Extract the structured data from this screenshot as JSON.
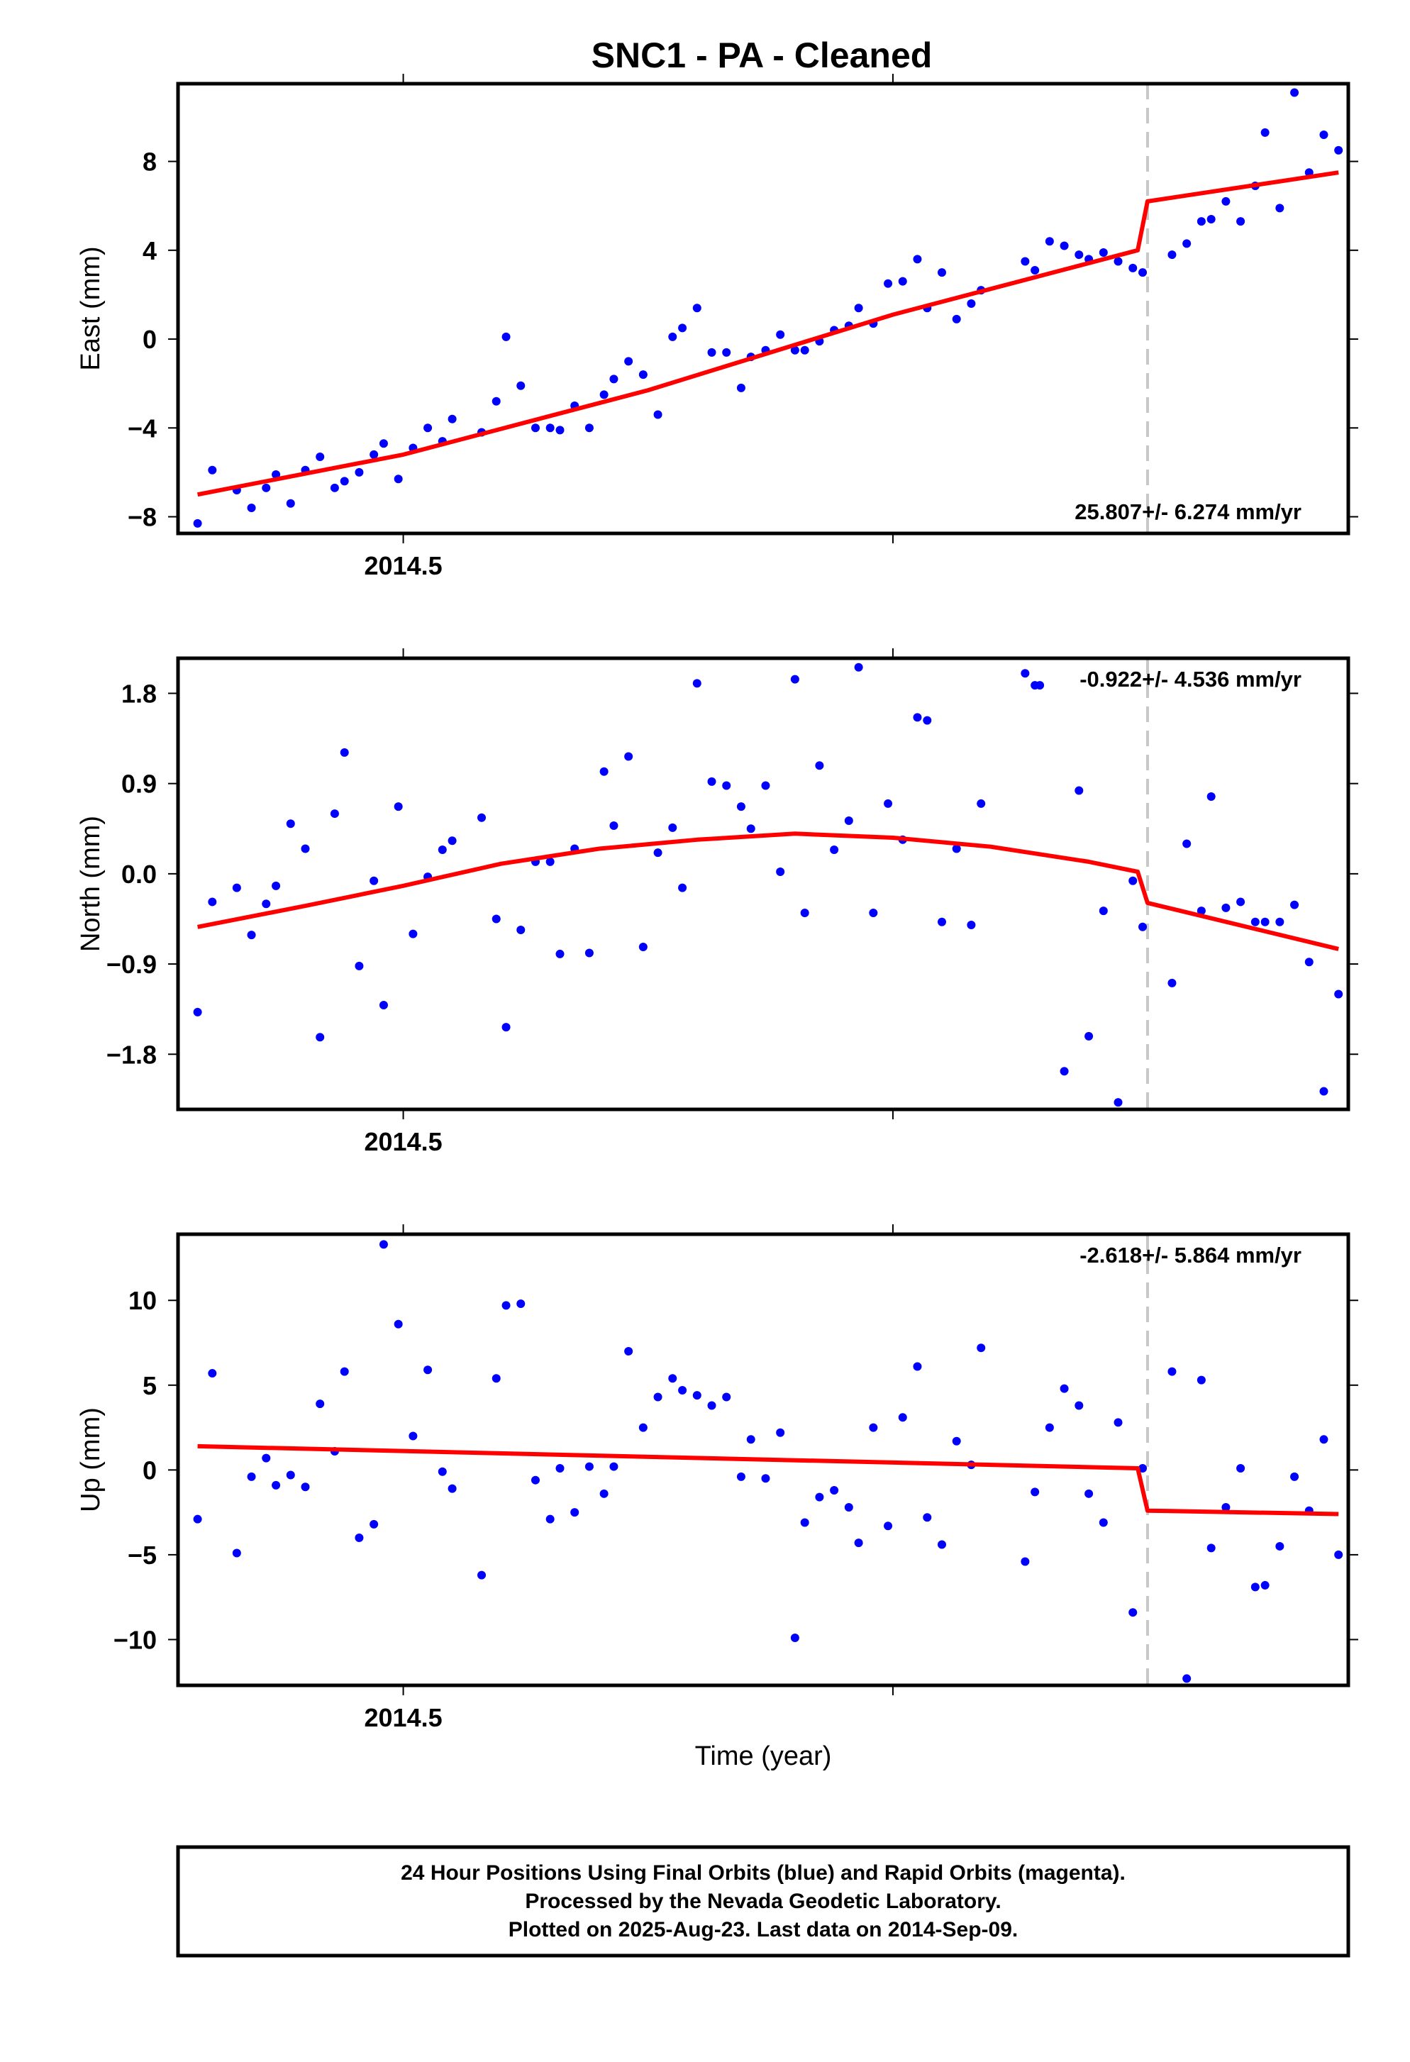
{
  "title": "SNC1  - PA - Cleaned",
  "footer": {
    "line1": "24 Hour Positions Using Final Orbits (blue) and Rapid Orbits (magenta).",
    "line2": "Processed by the Nevada Geodetic Laboratory.",
    "line3": "Plotted on 2025-Aug-23. Last data on 2014-Sep-09."
  },
  "colors": {
    "points": "#0000ff",
    "fit": "#ff0000",
    "break": "#c8c8c8",
    "frame": "#000000"
  },
  "chart_data": [
    {
      "type": "scatter",
      "panel": "east",
      "ylabel": "East (mm)",
      "xlabel": "",
      "rate_label": "25.807+/- 6.274 mm/yr",
      "rate_position": "bottom-right",
      "xlim": [
        2014.454,
        2014.693
      ],
      "ylim": [
        -8.75,
        11.5
      ],
      "yticks": [
        -8,
        -4,
        0,
        4,
        8
      ],
      "ytick_labels": [
        "−8",
        "−4",
        "0",
        "4",
        "8"
      ],
      "xticks": [
        2014.5,
        2014.6
      ],
      "xtick_labels": [
        "2014.5",
        ""
      ],
      "break_x": 2014.652,
      "points": [
        [
          2014.458,
          -8.3
        ],
        [
          2014.461,
          -5.9
        ],
        [
          2014.466,
          -6.8
        ],
        [
          2014.469,
          -7.6
        ],
        [
          2014.472,
          -6.7
        ],
        [
          2014.474,
          -6.1
        ],
        [
          2014.477,
          -7.4
        ],
        [
          2014.48,
          -5.9
        ],
        [
          2014.483,
          -5.3
        ],
        [
          2014.486,
          -6.7
        ],
        [
          2014.488,
          -6.4
        ],
        [
          2014.491,
          -6.0
        ],
        [
          2014.494,
          -5.2
        ],
        [
          2014.496,
          -4.7
        ],
        [
          2014.499,
          -6.3
        ],
        [
          2014.502,
          -4.9
        ],
        [
          2014.505,
          -4.0
        ],
        [
          2014.508,
          -4.6
        ],
        [
          2014.51,
          -3.6
        ],
        [
          2014.516,
          -4.2
        ],
        [
          2014.519,
          -2.8
        ],
        [
          2014.521,
          0.1
        ],
        [
          2014.524,
          -2.1
        ],
        [
          2014.527,
          -4.0
        ],
        [
          2014.53,
          -4.0
        ],
        [
          2014.532,
          -4.1
        ],
        [
          2014.535,
          -3.0
        ],
        [
          2014.538,
          -4.0
        ],
        [
          2014.541,
          -2.5
        ],
        [
          2014.543,
          -1.8
        ],
        [
          2014.546,
          -1.0
        ],
        [
          2014.549,
          -1.6
        ],
        [
          2014.552,
          -3.4
        ],
        [
          2014.555,
          0.1
        ],
        [
          2014.557,
          0.5
        ],
        [
          2014.56,
          1.4
        ],
        [
          2014.563,
          -0.6
        ],
        [
          2014.566,
          -0.6
        ],
        [
          2014.569,
          -2.2
        ],
        [
          2014.571,
          -0.8
        ],
        [
          2014.574,
          -0.5
        ],
        [
          2014.577,
          0.2
        ],
        [
          2014.58,
          -0.5
        ],
        [
          2014.582,
          -0.5
        ],
        [
          2014.585,
          -0.1
        ],
        [
          2014.588,
          0.4
        ],
        [
          2014.591,
          0.6
        ],
        [
          2014.593,
          1.4
        ],
        [
          2014.596,
          0.7
        ],
        [
          2014.599,
          2.5
        ],
        [
          2014.602,
          2.6
        ],
        [
          2014.605,
          3.6
        ],
        [
          2014.607,
          1.4
        ],
        [
          2014.61,
          3.0
        ],
        [
          2014.613,
          0.9
        ],
        [
          2014.616,
          1.6
        ],
        [
          2014.618,
          2.2
        ],
        [
          2014.627,
          3.5
        ],
        [
          2014.629,
          3.1
        ],
        [
          2014.632,
          4.4
        ],
        [
          2014.635,
          4.2
        ],
        [
          2014.638,
          3.8
        ],
        [
          2014.64,
          3.6
        ],
        [
          2014.643,
          3.9
        ],
        [
          2014.646,
          3.5
        ],
        [
          2014.649,
          3.2
        ],
        [
          2014.651,
          3.0
        ],
        [
          2014.657,
          3.8
        ],
        [
          2014.66,
          4.3
        ],
        [
          2014.663,
          5.3
        ],
        [
          2014.665,
          5.4
        ],
        [
          2014.668,
          6.2
        ],
        [
          2014.671,
          5.3
        ],
        [
          2014.674,
          6.9
        ],
        [
          2014.676,
          9.3
        ],
        [
          2014.679,
          5.9
        ],
        [
          2014.682,
          11.1
        ],
        [
          2014.685,
          7.5
        ],
        [
          2014.688,
          9.2
        ],
        [
          2014.691,
          8.5
        ]
      ],
      "fit": [
        [
          2014.458,
          -7.0
        ],
        [
          2014.5,
          -5.2
        ],
        [
          2014.55,
          -2.3
        ],
        [
          2014.6,
          1.1
        ],
        [
          2014.65,
          4.0
        ],
        [
          2014.652,
          6.2
        ],
        [
          2014.691,
          7.5
        ]
      ]
    },
    {
      "type": "scatter",
      "panel": "north",
      "ylabel": "North (mm)",
      "xlabel": "",
      "rate_label": "-0.922+/- 4.536 mm/yr",
      "rate_position": "top-right",
      "xlim": [
        2014.454,
        2014.693
      ],
      "ylim": [
        -2.35,
        2.15
      ],
      "yticks": [
        -1.8,
        -0.9,
        0.0,
        0.9,
        1.8
      ],
      "ytick_labels": [
        "−1.8",
        "−0.9",
        "0.0",
        "0.9",
        "1.8"
      ],
      "xticks": [
        2014.5,
        2014.6
      ],
      "xtick_labels": [
        "2014.5",
        ""
      ],
      "break_x": 2014.652,
      "points": [
        [
          2014.458,
          -1.38
        ],
        [
          2014.461,
          -0.28
        ],
        [
          2014.466,
          -0.14
        ],
        [
          2014.469,
          -0.61
        ],
        [
          2014.472,
          -0.3
        ],
        [
          2014.474,
          -0.12
        ],
        [
          2014.477,
          0.5
        ],
        [
          2014.48,
          0.25
        ],
        [
          2014.483,
          -1.63
        ],
        [
          2014.486,
          0.6
        ],
        [
          2014.488,
          1.21
        ],
        [
          2014.491,
          -0.92
        ],
        [
          2014.494,
          -0.07
        ],
        [
          2014.496,
          -1.31
        ],
        [
          2014.499,
          0.67
        ],
        [
          2014.502,
          -0.6
        ],
        [
          2014.505,
          -0.03
        ],
        [
          2014.508,
          0.24
        ],
        [
          2014.51,
          0.33
        ],
        [
          2014.516,
          0.56
        ],
        [
          2014.519,
          -0.45
        ],
        [
          2014.521,
          -1.53
        ],
        [
          2014.524,
          -0.56
        ],
        [
          2014.527,
          0.12
        ],
        [
          2014.53,
          0.12
        ],
        [
          2014.532,
          -0.8
        ],
        [
          2014.535,
          0.25
        ],
        [
          2014.538,
          -0.79
        ],
        [
          2014.541,
          1.02
        ],
        [
          2014.543,
          0.48
        ],
        [
          2014.546,
          1.17
        ],
        [
          2014.549,
          -0.73
        ],
        [
          2014.552,
          0.21
        ],
        [
          2014.555,
          0.46
        ],
        [
          2014.557,
          -0.14
        ],
        [
          2014.56,
          1.9
        ],
        [
          2014.563,
          0.92
        ],
        [
          2014.566,
          0.88
        ],
        [
          2014.569,
          0.67
        ],
        [
          2014.571,
          0.45
        ],
        [
          2014.574,
          0.88
        ],
        [
          2014.577,
          0.02
        ],
        [
          2014.58,
          1.94
        ],
        [
          2014.582,
          -0.39
        ],
        [
          2014.585,
          1.08
        ],
        [
          2014.588,
          0.24
        ],
        [
          2014.591,
          0.53
        ],
        [
          2014.593,
          2.06
        ],
        [
          2014.596,
          -0.39
        ],
        [
          2014.599,
          0.7
        ],
        [
          2014.602,
          0.34
        ],
        [
          2014.605,
          1.56
        ],
        [
          2014.607,
          1.53
        ],
        [
          2014.61,
          -0.48
        ],
        [
          2014.613,
          0.25
        ],
        [
          2014.616,
          -0.51
        ],
        [
          2014.618,
          0.7
        ],
        [
          2014.627,
          2.0
        ],
        [
          2014.629,
          1.88
        ],
        [
          2014.63,
          1.88
        ],
        [
          2014.635,
          -1.97
        ],
        [
          2014.638,
          0.83
        ],
        [
          2014.64,
          -1.62
        ],
        [
          2014.643,
          -0.37
        ],
        [
          2014.646,
          -2.28
        ],
        [
          2014.649,
          -0.07
        ],
        [
          2014.651,
          -0.53
        ],
        [
          2014.657,
          -1.09
        ],
        [
          2014.66,
          0.3
        ],
        [
          2014.663,
          -0.37
        ],
        [
          2014.665,
          0.77
        ],
        [
          2014.668,
          -0.34
        ],
        [
          2014.671,
          -0.28
        ],
        [
          2014.674,
          -0.48
        ],
        [
          2014.676,
          -0.48
        ],
        [
          2014.679,
          -0.48
        ],
        [
          2014.682,
          -0.31
        ],
        [
          2014.685,
          -0.88
        ],
        [
          2014.688,
          -2.17
        ],
        [
          2014.691,
          -1.2
        ]
      ],
      "fit": [
        [
          2014.458,
          -0.53
        ],
        [
          2014.48,
          -0.32
        ],
        [
          2014.5,
          -0.12
        ],
        [
          2014.52,
          0.1
        ],
        [
          2014.54,
          0.25
        ],
        [
          2014.56,
          0.34
        ],
        [
          2014.58,
          0.4
        ],
        [
          2014.6,
          0.36
        ],
        [
          2014.62,
          0.27
        ],
        [
          2014.64,
          0.12
        ],
        [
          2014.65,
          0.02
        ],
        [
          2014.652,
          -0.29
        ],
        [
          2014.691,
          -0.75
        ]
      ]
    },
    {
      "type": "scatter",
      "panel": "up",
      "ylabel": "Up (mm)",
      "xlabel": "Time (year)",
      "rate_label": "-2.618+/- 5.864 mm/yr",
      "rate_position": "top-right",
      "xlim": [
        2014.454,
        2014.693
      ],
      "ylim": [
        -12.7,
        13.9
      ],
      "yticks": [
        -10,
        -5,
        0,
        5,
        10
      ],
      "ytick_labels": [
        "−10",
        "−5",
        "0",
        "5",
        "10"
      ],
      "xticks": [
        2014.5,
        2014.6
      ],
      "xtick_labels": [
        "2014.5",
        ""
      ],
      "break_x": 2014.652,
      "points": [
        [
          2014.458,
          -2.9
        ],
        [
          2014.461,
          5.7
        ],
        [
          2014.466,
          -4.9
        ],
        [
          2014.469,
          -0.4
        ],
        [
          2014.472,
          0.7
        ],
        [
          2014.474,
          -0.9
        ],
        [
          2014.477,
          -0.3
        ],
        [
          2014.48,
          -1.0
        ],
        [
          2014.483,
          3.9
        ],
        [
          2014.486,
          1.1
        ],
        [
          2014.488,
          5.8
        ],
        [
          2014.491,
          -4.0
        ],
        [
          2014.494,
          -3.2
        ],
        [
          2014.496,
          13.3
        ],
        [
          2014.499,
          8.6
        ],
        [
          2014.502,
          2.0
        ],
        [
          2014.505,
          5.9
        ],
        [
          2014.508,
          -0.1
        ],
        [
          2014.51,
          -1.1
        ],
        [
          2014.516,
          -6.2
        ],
        [
          2014.519,
          5.4
        ],
        [
          2014.521,
          9.7
        ],
        [
          2014.524,
          9.8
        ],
        [
          2014.527,
          -0.6
        ],
        [
          2014.53,
          -2.9
        ],
        [
          2014.532,
          0.1
        ],
        [
          2014.535,
          -2.5
        ],
        [
          2014.538,
          0.2
        ],
        [
          2014.541,
          -1.4
        ],
        [
          2014.543,
          0.2
        ],
        [
          2014.546,
          7.0
        ],
        [
          2014.549,
          2.5
        ],
        [
          2014.552,
          4.3
        ],
        [
          2014.555,
          5.4
        ],
        [
          2014.557,
          4.7
        ],
        [
          2014.56,
          4.4
        ],
        [
          2014.563,
          3.8
        ],
        [
          2014.566,
          4.3
        ],
        [
          2014.569,
          -0.4
        ],
        [
          2014.571,
          1.8
        ],
        [
          2014.574,
          -0.5
        ],
        [
          2014.577,
          2.2
        ],
        [
          2014.58,
          -9.9
        ],
        [
          2014.582,
          -3.1
        ],
        [
          2014.585,
          -1.6
        ],
        [
          2014.588,
          -1.2
        ],
        [
          2014.591,
          -2.2
        ],
        [
          2014.593,
          -4.3
        ],
        [
          2014.596,
          2.5
        ],
        [
          2014.599,
          -3.3
        ],
        [
          2014.602,
          3.1
        ],
        [
          2014.605,
          6.1
        ],
        [
          2014.607,
          -2.8
        ],
        [
          2014.61,
          -4.4
        ],
        [
          2014.613,
          1.7
        ],
        [
          2014.616,
          0.3
        ],
        [
          2014.618,
          7.2
        ],
        [
          2014.627,
          -5.4
        ],
        [
          2014.629,
          -1.3
        ],
        [
          2014.632,
          2.5
        ],
        [
          2014.635,
          4.8
        ],
        [
          2014.638,
          3.8
        ],
        [
          2014.64,
          -1.4
        ],
        [
          2014.643,
          -3.1
        ],
        [
          2014.646,
          2.8
        ],
        [
          2014.649,
          -8.4
        ],
        [
          2014.651,
          0.1
        ],
        [
          2014.657,
          5.8
        ],
        [
          2014.66,
          -12.3
        ],
        [
          2014.663,
          5.3
        ],
        [
          2014.665,
          -4.6
        ],
        [
          2014.668,
          -2.2
        ],
        [
          2014.671,
          0.1
        ],
        [
          2014.674,
          -6.9
        ],
        [
          2014.676,
          -6.8
        ],
        [
          2014.679,
          -4.5
        ],
        [
          2014.682,
          -0.4
        ],
        [
          2014.685,
          -2.4
        ],
        [
          2014.688,
          1.8
        ],
        [
          2014.691,
          -5.0
        ]
      ],
      "fit": [
        [
          2014.458,
          1.4
        ],
        [
          2014.65,
          0.1
        ],
        [
          2014.652,
          -2.4
        ],
        [
          2014.691,
          -2.6
        ]
      ]
    }
  ]
}
